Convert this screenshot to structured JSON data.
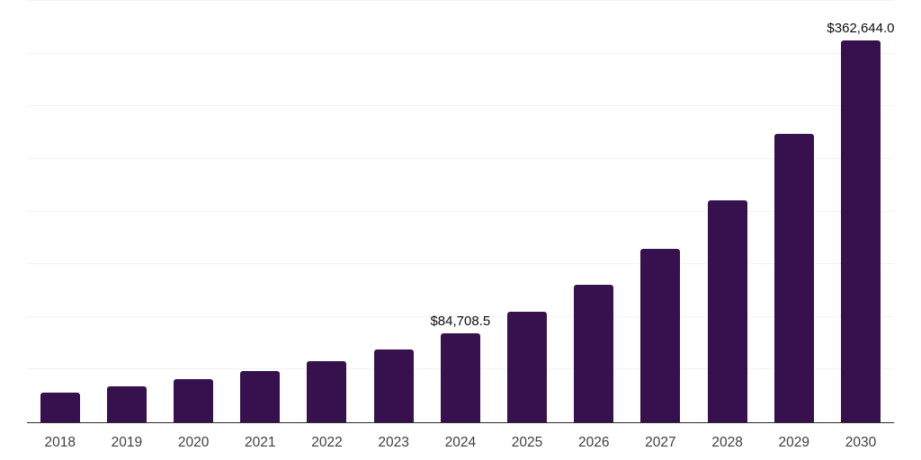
{
  "chart_data": {
    "type": "bar",
    "title": "",
    "xlabel": "",
    "ylabel": "",
    "categories": [
      "2018",
      "2019",
      "2020",
      "2021",
      "2022",
      "2023",
      "2024",
      "2025",
      "2026",
      "2027",
      "2028",
      "2029",
      "2030"
    ],
    "values": [
      28200,
      33900,
      41200,
      48900,
      58300,
      68800,
      84708.5,
      105200,
      130800,
      164900,
      210400,
      273800,
      362644
    ],
    "data_labels": [
      {
        "category": "2024",
        "text": "$84,708.5"
      },
      {
        "category": "2030",
        "text": "$362,644.0"
      }
    ],
    "ylim": [
      0,
      400000
    ],
    "gridline_step": 50000,
    "grid": "horizontal-only",
    "y_tick_labels_shown": false,
    "legend": "none",
    "bar_color": "#36114e",
    "gridline_color": "#f2f2f2",
    "axis_line_color": "#2b2b2b",
    "tick_label_color": "#3f3f3f",
    "data_label_color": "#0d0d0d",
    "background_color": "#ffffff"
  }
}
